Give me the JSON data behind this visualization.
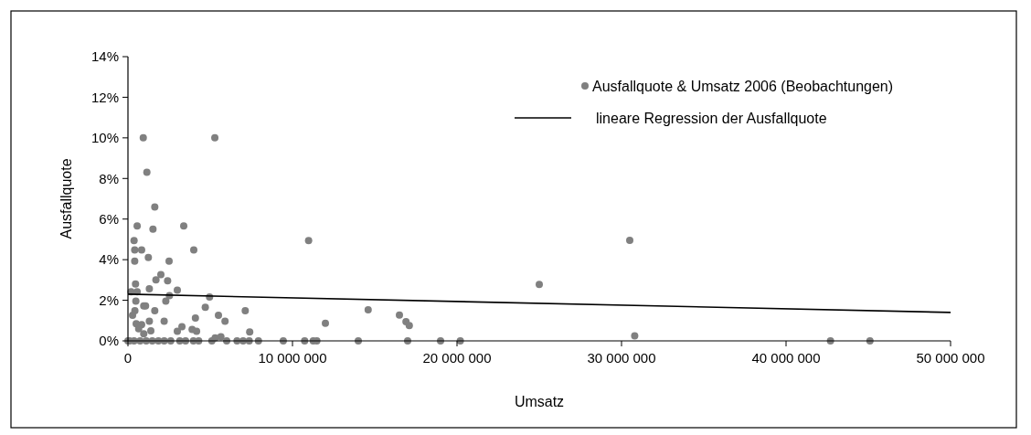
{
  "chart_data": {
    "type": "scatter",
    "xlabel": "Umsatz",
    "ylabel": "Ausfallquote",
    "xlim": [
      0,
      50000000
    ],
    "ylim": [
      0,
      14
    ],
    "xticks": [
      {
        "value": 0,
        "label": "0"
      },
      {
        "value": 10000000,
        "label": "10 000 000"
      },
      {
        "value": 20000000,
        "label": "20 000 000"
      },
      {
        "value": 30000000,
        "label": "30 000 000"
      },
      {
        "value": 40000000,
        "label": "40 000 000"
      },
      {
        "value": 50000000,
        "label": "50 000 000"
      }
    ],
    "yticks": [
      {
        "value": 0,
        "label": "0%"
      },
      {
        "value": 2,
        "label": "2%"
      },
      {
        "value": 4,
        "label": "4%"
      },
      {
        "value": 6,
        "label": "6%"
      },
      {
        "value": 8,
        "label": "8%"
      },
      {
        "value": 10,
        "label": "10%"
      },
      {
        "value": 12,
        "label": "12%"
      },
      {
        "value": 14,
        "label": "14%"
      }
    ],
    "grid": false,
    "legend": "top right",
    "series": [
      {
        "name": "Ausfallquote & Umsatz 2006 (Beobachtungen)",
        "color": "#808080",
        "marker": "circle",
        "x": [
          930000,
          5280000,
          1150000,
          1630000,
          560000,
          1520000,
          3390000,
          370000,
          10980000,
          410000,
          830000,
          4000000,
          410000,
          1240000,
          2500000,
          2000000,
          1700000,
          2410000,
          460000,
          190000,
          560000,
          1300000,
          3000000,
          2520000,
          2300000,
          480000,
          4960000,
          1070000,
          960000,
          1630000,
          4700000,
          7130000,
          420000,
          280000,
          5500000,
          4100000,
          5900000,
          2200000,
          1300000,
          12000000,
          14600000,
          500000,
          830000,
          3280000,
          3000000,
          3900000,
          4170000,
          7400000,
          1390000,
          960000,
          650000,
          5300000,
          5650000,
          0,
          90000,
          370000,
          740000,
          1110000,
          1480000,
          1850000,
          2200000,
          2600000,
          3150000,
          3500000,
          3980000,
          4300000,
          5100000,
          6000000,
          6630000,
          7000000,
          7370000,
          7930000,
          9440000,
          10740000,
          11260000,
          11480000,
          14000000,
          16500000,
          16900000,
          17100000,
          17000000,
          19000000,
          20200000,
          25000000,
          30500000,
          30800000,
          42700000,
          45100000
        ],
        "values": [
          10,
          10,
          8.3,
          6.6,
          5.66,
          5.5,
          5.66,
          4.94,
          4.94,
          4.48,
          4.48,
          4.48,
          3.93,
          4.11,
          3.93,
          3.26,
          3,
          2.96,
          2.8,
          2.42,
          2.42,
          2.57,
          2.5,
          2.23,
          1.96,
          1.96,
          2.16,
          1.72,
          1.72,
          1.48,
          1.65,
          1.48,
          1.48,
          1.26,
          1.26,
          1.13,
          0.97,
          0.97,
          0.97,
          0.87,
          1.53,
          0.84,
          0.8,
          0.7,
          0.47,
          0.56,
          0.47,
          0.44,
          0.5,
          0.35,
          0.6,
          0.15,
          0.2,
          0,
          0,
          0,
          0,
          0,
          0,
          0,
          0,
          0,
          0,
          0,
          0,
          0,
          0,
          0,
          0,
          0,
          0,
          0,
          0,
          0,
          0,
          0,
          0,
          1.27,
          0.95,
          0.75,
          0,
          0,
          0,
          2.78,
          4.95,
          0.25,
          0,
          0
        ]
      },
      {
        "name": "lineare Regression der Ausfallquote",
        "type": "line",
        "color": "#000000",
        "marker": "none",
        "line_style": "solid",
        "x": [
          0,
          50000000
        ],
        "values": [
          2.3,
          1.4
        ]
      }
    ]
  }
}
